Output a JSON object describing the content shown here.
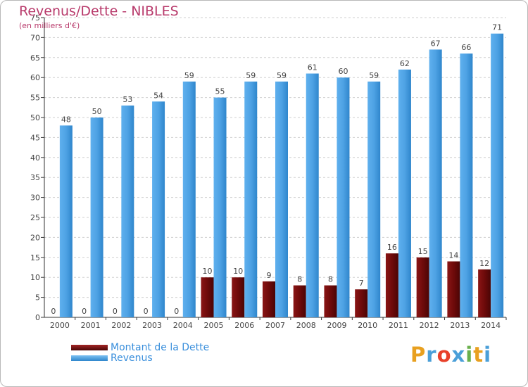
{
  "header": {
    "title": "Revenus/Dette - NIBLES",
    "subtitle": "(en milliers d'€)"
  },
  "chart_data": {
    "type": "bar",
    "categories": [
      "2000",
      "2001",
      "2002",
      "2003",
      "2004",
      "2005",
      "2006",
      "2007",
      "2008",
      "2009",
      "2010",
      "2011",
      "2012",
      "2013",
      "2014"
    ],
    "series": [
      {
        "name": "Montant de la Dette",
        "color": "#6e0a0a",
        "values": [
          0,
          0,
          0,
          0,
          0,
          10,
          10,
          9,
          8,
          8,
          7,
          16,
          15,
          14,
          12
        ]
      },
      {
        "name": "Revenus",
        "color": "#4fa3e6",
        "values": [
          48,
          50,
          53,
          54,
          59,
          55,
          59,
          59,
          61,
          60,
          59,
          62,
          67,
          66,
          71
        ]
      }
    ],
    "ylim": [
      0,
      75
    ],
    "yticks": [
      0,
      5,
      10,
      15,
      20,
      25,
      30,
      35,
      40,
      45,
      50,
      55,
      60,
      65,
      70,
      75
    ],
    "grid": true,
    "legend_position": "bottom-left"
  },
  "legend": {
    "items": [
      {
        "label": "Montant de la Dette",
        "color": "#6e0a0a"
      },
      {
        "label": "Revenus",
        "color": "#4fa3e6"
      }
    ]
  },
  "logo": {
    "letters": [
      "P",
      "r",
      "o",
      "x",
      "i",
      "t",
      "i"
    ],
    "colors": [
      "#e8a020",
      "#4a9fd8",
      "#e8402a",
      "#4a9fd8",
      "#6ab04c",
      "#e8a020",
      "#4a9fd8"
    ]
  }
}
